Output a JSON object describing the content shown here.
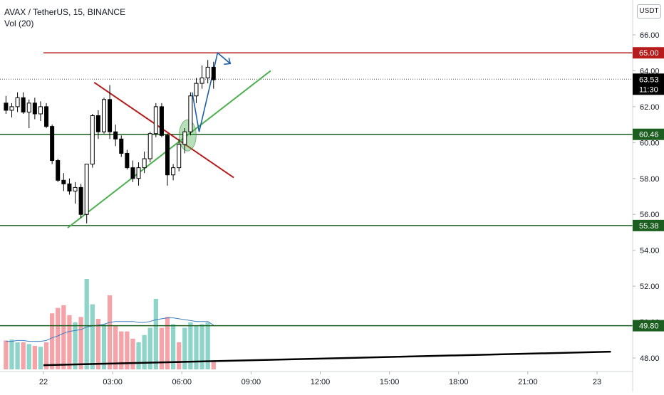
{
  "header": {
    "symbol_line": "AVAX / TetherUS, 15, BINANCE",
    "indicator": "Vol (20)",
    "currency_badge": "USDT"
  },
  "colors": {
    "bull": "#ffffff",
    "bear": "#000000",
    "vol_up": "#8fd4c9",
    "vol_down": "#f4a3a8",
    "red_line": "#b71c1c",
    "green_line": "#2e7d32",
    "trend_green": "#4caf50",
    "arrow_blue": "#1e5fa8",
    "black_line": "#000000",
    "vol_ma": "#3f7fbf"
  },
  "chart_data": {
    "type": "candlestick",
    "title": "AVAX / TetherUS, 15, BINANCE",
    "y_axis": {
      "range": [
        47.3,
        67.5
      ],
      "ticks": [
        "48.00",
        "50.00",
        "52.00",
        "54.00",
        "56.00",
        "58.00",
        "60.00",
        "62.00",
        "64.00",
        "66.00"
      ],
      "tick_values": [
        48,
        50,
        52,
        54,
        56,
        58,
        60,
        62,
        64,
        66
      ]
    },
    "x_axis": {
      "ticks": [
        "22",
        "03:00",
        "06:00",
        "09:00",
        "12:00",
        "15:00",
        "18:00",
        "21:00",
        "23"
      ],
      "tick_hours": [
        0,
        3,
        6,
        9,
        12,
        15,
        18,
        21,
        24
      ]
    },
    "candles_start_hour": -1.75,
    "bar_minutes": 15,
    "candles": [
      [
        62.2,
        62.6,
        61.6,
        61.8
      ],
      [
        61.8,
        62.2,
        61.4,
        62.0
      ],
      [
        62.0,
        62.8,
        61.7,
        62.5
      ],
      [
        62.5,
        62.8,
        61.6,
        61.7
      ],
      [
        61.7,
        62.4,
        60.8,
        62.2
      ],
      [
        62.2,
        62.5,
        61.3,
        61.6
      ],
      [
        61.6,
        62.3,
        61.2,
        62.0
      ],
      [
        62.0,
        62.2,
        60.8,
        60.9
      ],
      [
        60.9,
        61.0,
        58.8,
        59.0
      ],
      [
        59.0,
        59.1,
        57.8,
        57.9
      ],
      [
        57.9,
        58.3,
        57.3,
        57.7
      ],
      [
        57.7,
        58.0,
        57.1,
        57.3
      ],
      [
        57.3,
        57.8,
        56.6,
        57.5
      ],
      [
        57.5,
        57.7,
        55.8,
        56.0
      ],
      [
        56.0,
        58.8,
        55.5,
        58.8
      ],
      [
        58.8,
        61.6,
        58.6,
        61.5
      ],
      [
        61.5,
        61.8,
        60.2,
        60.6
      ],
      [
        60.6,
        62.5,
        60.5,
        62.4
      ],
      [
        62.4,
        63.2,
        60.2,
        60.6
      ],
      [
        60.6,
        61.0,
        59.8,
        60.2
      ],
      [
        60.2,
        60.4,
        59.2,
        59.4
      ],
      [
        59.4,
        59.6,
        58.5,
        58.6
      ],
      [
        58.6,
        59.0,
        57.8,
        58.0
      ],
      [
        58.0,
        58.9,
        57.6,
        58.6
      ],
      [
        58.6,
        59.5,
        58.3,
        59.1
      ],
      [
        59.1,
        60.6,
        58.9,
        60.5
      ],
      [
        60.5,
        62.2,
        60.3,
        62.0
      ],
      [
        62.0,
        62.2,
        60.3,
        60.4
      ],
      [
        60.4,
        60.5,
        57.6,
        58.2
      ],
      [
        58.2,
        58.8,
        57.9,
        58.6
      ],
      [
        58.6,
        60.2,
        58.4,
        59.9
      ],
      [
        59.9,
        60.8,
        59.4,
        60.6
      ],
      [
        60.6,
        62.8,
        60.4,
        62.6
      ],
      [
        62.6,
        63.6,
        62.2,
        63.3
      ],
      [
        63.3,
        64.3,
        63.0,
        63.6
      ],
      [
        63.6,
        64.6,
        63.3,
        64.2
      ],
      [
        64.2,
        64.5,
        63.0,
        63.5
      ]
    ],
    "volume": {
      "max_display": 1.0,
      "values": [
        0.32,
        0.33,
        0.3,
        0.3,
        0.28,
        0.26,
        0.25,
        0.3,
        0.62,
        0.68,
        0.71,
        0.6,
        0.52,
        0.58,
        1.0,
        0.72,
        0.56,
        0.5,
        0.82,
        0.48,
        0.42,
        0.42,
        0.34,
        0.3,
        0.38,
        0.46,
        0.78,
        0.46,
        0.58,
        0.5,
        0.3,
        0.46,
        0.52,
        0.48,
        0.5,
        0.52,
        0.1
      ],
      "direction": [
        "d",
        "u",
        "u",
        "d",
        "u",
        "d",
        "u",
        "d",
        "d",
        "d",
        "d",
        "d",
        "u",
        "d",
        "u",
        "u",
        "d",
        "u",
        "d",
        "d",
        "d",
        "d",
        "d",
        "u",
        "u",
        "u",
        "u",
        "d",
        "d",
        "u",
        "d",
        "u",
        "u",
        "u",
        "u",
        "u",
        "d"
      ],
      "ma": [
        0.31,
        0.31,
        0.32,
        0.32,
        0.31,
        0.31,
        0.31,
        0.32,
        0.35,
        0.37,
        0.4,
        0.42,
        0.43,
        0.44,
        0.47,
        0.48,
        0.49,
        0.5,
        0.52,
        0.53,
        0.53,
        0.53,
        0.53,
        0.52,
        0.52,
        0.53,
        0.55,
        0.56,
        0.57,
        0.57,
        0.56,
        0.55,
        0.54,
        0.53,
        0.53,
        0.53,
        0.49
      ]
    },
    "horizontal_levels": [
      {
        "label": "65.00",
        "value": 65.0,
        "color": "#b71c1c",
        "start_hour": 0.0
      },
      {
        "label": "60.46",
        "value": 60.46,
        "color": "#1b5e20",
        "start_hour": -2.0
      },
      {
        "label": "55.38",
        "value": 55.38,
        "color": "#1b5e20",
        "start_hour": -2.0
      },
      {
        "label": "49.80",
        "value": 49.8,
        "color": "#1b5e20",
        "start_hour": -2.0
      }
    ],
    "last_price": {
      "label": "63.53",
      "value": 63.53,
      "countdown": "11:30"
    },
    "drawings": {
      "red_descending": [
        [
          2.2,
          63.35
        ],
        [
          8.25,
          58.05
        ]
      ],
      "green_ascending": [
        [
          1.05,
          55.25
        ],
        [
          9.85,
          64.0
        ]
      ],
      "black_trend": [
        [
          0.0,
          47.6
        ],
        [
          24.6,
          48.35
        ]
      ],
      "ellipse_center": [
        6.25,
        60.4
      ],
      "blue_path": [
        [
          6.45,
          62.8
        ],
        [
          6.75,
          60.6
        ],
        [
          7.55,
          65.0
        ],
        [
          8.1,
          64.4
        ]
      ]
    }
  }
}
